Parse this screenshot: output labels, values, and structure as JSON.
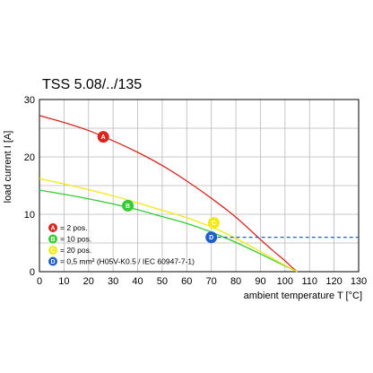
{
  "chart_data": {
    "type": "line",
    "title": "TSS 5.08/../135",
    "xlabel": "ambient temperature T [°C]",
    "ylabel": "load current I [A]",
    "xlim": [
      0,
      130
    ],
    "ylim": [
      0,
      30
    ],
    "xticks": [
      0,
      10,
      20,
      30,
      40,
      50,
      60,
      70,
      80,
      90,
      100,
      110,
      120,
      130
    ],
    "yticks": [
      0,
      10,
      20,
      30
    ],
    "grid": true,
    "legend_position": "bottom-left",
    "series": [
      {
        "marker": "A",
        "legend": "= 2 pos.",
        "color": "#d7261e",
        "style": "solid",
        "x": [
          0,
          10,
          20,
          30,
          40,
          50,
          60,
          70,
          80,
          90,
          95,
          100,
          103,
          105
        ],
        "y": [
          27.2,
          26.0,
          24.6,
          22.8,
          20.8,
          18.5,
          15.8,
          12.8,
          9.5,
          5.6,
          3.7,
          1.9,
          0.7,
          0
        ]
      },
      {
        "marker": "B",
        "legend": "= 10 pos.",
        "color": "#33cc33",
        "style": "solid",
        "x": [
          0,
          10,
          20,
          30,
          40,
          50,
          60,
          70,
          80,
          90,
          100,
          105
        ],
        "y": [
          14.2,
          13.5,
          12.7,
          11.8,
          10.8,
          9.6,
          8.4,
          6.9,
          5.1,
          3.1,
          1.0,
          0
        ]
      },
      {
        "marker": "C",
        "legend": "= 20 pos.",
        "color": "#f2ea12",
        "style": "solid",
        "x": [
          0,
          10,
          20,
          30,
          40,
          50,
          60,
          70,
          80,
          90,
          100,
          105
        ],
        "y": [
          16.2,
          15.3,
          14.3,
          13.2,
          12.0,
          10.7,
          9.4,
          7.8,
          5.8,
          3.5,
          1.1,
          0
        ]
      },
      {
        "marker": "D",
        "legend": "= 0,5 mm² (H05V-K0.5 / IEC 60947-7-1)",
        "color": "#1f5fc8",
        "style": "dashed",
        "x": [
          70,
          130
        ],
        "y": [
          6,
          6
        ]
      }
    ],
    "marker_points": [
      {
        "label": "A",
        "x": 26,
        "y": 23.5
      },
      {
        "label": "B",
        "x": 36,
        "y": 11.5
      },
      {
        "label": "C",
        "x": 71,
        "y": 8.5
      },
      {
        "label": "D",
        "x": 70,
        "y": 6
      }
    ]
  }
}
